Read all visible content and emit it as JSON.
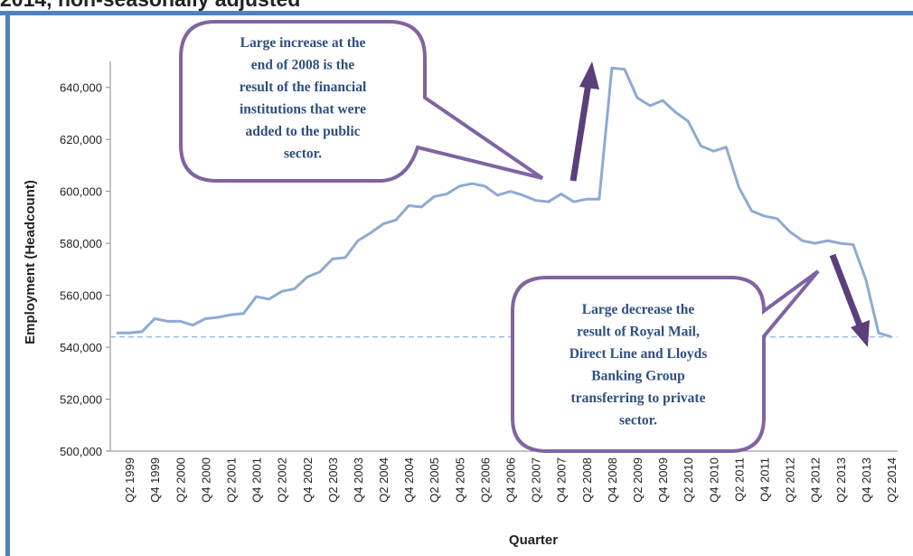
{
  "chart_data": {
    "type": "line",
    "title": "2014, non-seasonally adjusted",
    "y_label": "Employment (Headcount)",
    "x_label": "Quarter",
    "categories": [
      null,
      "Q2 1999",
      null,
      "Q4 1999",
      null,
      "Q2 2000",
      null,
      "Q4 2000",
      null,
      "Q2 2001",
      null,
      "Q4 2001",
      null,
      "Q2 2002",
      null,
      "Q4 2002",
      null,
      "Q2 2003",
      null,
      "Q4 2003",
      null,
      "Q2 2004",
      null,
      "Q4 2004",
      null,
      "Q2 2005",
      null,
      "Q4 2005",
      null,
      "Q2 2006",
      null,
      "Q4 2006",
      null,
      "Q2 2007",
      null,
      "Q4 2007",
      null,
      "Q2 2008",
      null,
      "Q4 2008",
      null,
      "Q2 2009",
      null,
      "Q4 2009",
      null,
      "Q2 2010",
      null,
      "Q4 2010",
      null,
      "Q2 2011",
      null,
      "Q4 2011",
      null,
      "Q2 2012",
      null,
      "Q4 2012",
      null,
      "Q2 2013",
      null,
      "Q4 2013",
      null,
      "Q2 2014"
    ],
    "values": [
      545500,
      545500,
      546000,
      551000,
      550000,
      550000,
      548500,
      551000,
      551500,
      552500,
      553000,
      559500,
      558500,
      561500,
      562500,
      567000,
      569000,
      574000,
      574500,
      581000,
      584000,
      587500,
      589000,
      594500,
      594000,
      598000,
      599000,
      602000,
      603000,
      602000,
      598500,
      600000,
      598500,
      596500,
      596000,
      599000,
      596000,
      597000,
      597000,
      647500,
      647000,
      636000,
      633000,
      635000,
      630500,
      627000,
      617500,
      615500,
      617000,
      601500,
      592500,
      590500,
      589500,
      584500,
      581000,
      580000,
      581000,
      580000,
      579500,
      566000,
      545500,
      544000
    ],
    "color": "#8eaad4",
    "reference_line": 544000,
    "reference_color": "#9dbbe3",
    "ylim": [
      500000,
      650000
    ],
    "yticks": [
      {
        "value": 500000,
        "label": "500,000"
      },
      {
        "value": 520000,
        "label": "520,000"
      },
      {
        "value": 540000,
        "label": "540,000"
      },
      {
        "value": 560000,
        "label": "560,000"
      },
      {
        "value": 580000,
        "label": "580,000"
      },
      {
        "value": 600000,
        "label": "600,000"
      },
      {
        "value": 620000,
        "label": "620,000"
      },
      {
        "value": 640000,
        "label": "640,000"
      }
    ],
    "annotations": [
      {
        "lines": [
          "Large increase at the",
          "end of 2008 is the",
          "result of the financial",
          "institutions that were",
          "added to the public",
          "sector."
        ]
      },
      {
        "lines": [
          "Large decrease the",
          "result of Royal Mail,",
          "Direct Line and Lloyds",
          "Banking Group",
          "transferring to private",
          "sector."
        ]
      }
    ]
  }
}
